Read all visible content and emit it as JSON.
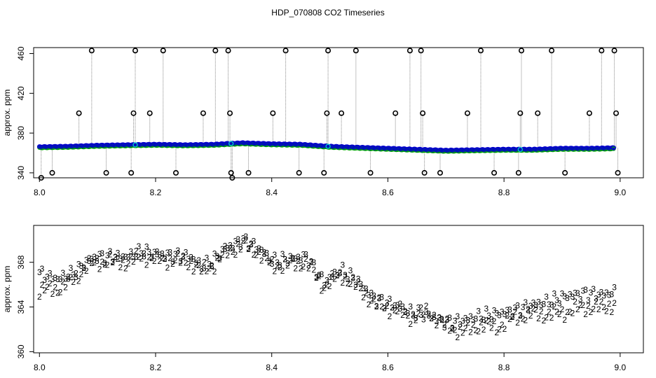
{
  "title": "HDP_070808  CO2 Timeseries",
  "chart_data": [
    {
      "type": "scatter",
      "panel": "top",
      "ylabel": "approx. ppm",
      "xlim": [
        7.99,
        9.04
      ],
      "ylim": [
        335,
        466
      ],
      "xticks": [
        8.0,
        8.2,
        8.4,
        8.6,
        8.8,
        9.0
      ],
      "xtick_labels": [
        "8.0",
        "8.2",
        "8.4",
        "8.6",
        "8.8",
        "9.0"
      ],
      "yticks": [
        340,
        380,
        420,
        460
      ],
      "ytick_labels": [
        "340",
        "380",
        "420",
        "460"
      ],
      "colors": {
        "series_blue": "#0000CC",
        "series_green": "#00AA00",
        "series_cyan": "#00CCCC",
        "outlier": "#000000",
        "connector": "#888888"
      },
      "baseline": {
        "x": [
          8.0,
          8.05,
          8.1,
          8.15,
          8.2,
          8.25,
          8.3,
          8.33,
          8.35,
          8.4,
          8.45,
          8.5,
          8.55,
          8.6,
          8.65,
          8.7,
          8.75,
          8.8,
          8.85,
          8.9,
          8.95,
          8.99
        ],
        "y": [
          366,
          366.5,
          367.5,
          368,
          368.5,
          368,
          368.5,
          369.5,
          370,
          369,
          368.5,
          366.5,
          365.5,
          364.5,
          363.5,
          362.5,
          363,
          363.5,
          363.5,
          364.5,
          364.5,
          365
        ]
      },
      "outliers": [
        {
          "x": 8.003,
          "y": 335
        },
        {
          "x": 8.022,
          "y": 340
        },
        {
          "x": 8.068,
          "y": 400
        },
        {
          "x": 8.09,
          "y": 463
        },
        {
          "x": 8.115,
          "y": 340
        },
        {
          "x": 8.158,
          "y": 340
        },
        {
          "x": 8.162,
          "y": 400
        },
        {
          "x": 8.165,
          "y": 463
        },
        {
          "x": 8.19,
          "y": 400
        },
        {
          "x": 8.213,
          "y": 463
        },
        {
          "x": 8.235,
          "y": 340
        },
        {
          "x": 8.282,
          "y": 400
        },
        {
          "x": 8.303,
          "y": 463
        },
        {
          "x": 8.325,
          "y": 463
        },
        {
          "x": 8.328,
          "y": 400
        },
        {
          "x": 8.33,
          "y": 340
        },
        {
          "x": 8.332,
          "y": 335
        },
        {
          "x": 8.36,
          "y": 340
        },
        {
          "x": 8.402,
          "y": 400
        },
        {
          "x": 8.424,
          "y": 463
        },
        {
          "x": 8.447,
          "y": 340
        },
        {
          "x": 8.495,
          "y": 400
        },
        {
          "x": 8.497,
          "y": 463
        },
        {
          "x": 8.49,
          "y": 340
        },
        {
          "x": 8.52,
          "y": 400
        },
        {
          "x": 8.545,
          "y": 463
        },
        {
          "x": 8.57,
          "y": 340
        },
        {
          "x": 8.613,
          "y": 400
        },
        {
          "x": 8.638,
          "y": 463
        },
        {
          "x": 8.657,
          "y": 463
        },
        {
          "x": 8.66,
          "y": 400
        },
        {
          "x": 8.663,
          "y": 340
        },
        {
          "x": 8.69,
          "y": 340
        },
        {
          "x": 8.737,
          "y": 400
        },
        {
          "x": 8.76,
          "y": 463
        },
        {
          "x": 8.783,
          "y": 340
        },
        {
          "x": 8.825,
          "y": 340
        },
        {
          "x": 8.828,
          "y": 400
        },
        {
          "x": 8.83,
          "y": 463
        },
        {
          "x": 8.858,
          "y": 400
        },
        {
          "x": 8.882,
          "y": 463
        },
        {
          "x": 8.905,
          "y": 340
        },
        {
          "x": 8.947,
          "y": 400
        },
        {
          "x": 8.968,
          "y": 463
        },
        {
          "x": 8.99,
          "y": 463
        },
        {
          "x": 8.993,
          "y": 400
        },
        {
          "x": 8.996,
          "y": 340
        }
      ]
    },
    {
      "type": "scatter",
      "panel": "bottom",
      "ylabel": "approx. ppm",
      "xlim": [
        7.99,
        9.04
      ],
      "ylim": [
        359.9,
        371.3
      ],
      "xticks": [
        8.0,
        8.2,
        8.4,
        8.6,
        8.8,
        9.0
      ],
      "xtick_labels": [
        "8.0",
        "8.2",
        "8.4",
        "8.6",
        "8.8",
        "9.0"
      ],
      "yticks": [
        360,
        364,
        368
      ],
      "ytick_labels": [
        "360",
        "364",
        "368"
      ],
      "marker_labels": {
        "series_3": "3",
        "series_2": "2"
      },
      "colors": {
        "series_3": "#0000CC",
        "series_2": "#00AA00"
      },
      "series_3": {
        "x": [
          8.0,
          8.03,
          8.06,
          8.08,
          8.1,
          8.12,
          8.15,
          8.18,
          8.2,
          8.23,
          8.26,
          8.28,
          8.3,
          8.32,
          8.35,
          8.38,
          8.4,
          8.43,
          8.46,
          8.49,
          8.5,
          8.52,
          8.55,
          8.58,
          8.61,
          8.64,
          8.67,
          8.7,
          8.73,
          8.76,
          8.79,
          8.82,
          8.85,
          8.88,
          8.91,
          8.94,
          8.97,
          8.99
        ],
        "y": [
          367,
          366.5,
          367,
          368,
          368.5,
          368.5,
          368.5,
          369,
          368.7,
          368.6,
          368.5,
          367.6,
          368.2,
          369.2,
          370,
          369.2,
          368.1,
          368.3,
          368.5,
          366.2,
          366.6,
          367.3,
          366.2,
          364.6,
          364.2,
          363.5,
          363.2,
          362.6,
          362.8,
          363.2,
          363.4,
          363.7,
          364.2,
          364.5,
          365,
          365.2,
          365.1,
          365.3
        ]
      },
      "series_2": {
        "x": [
          8.0,
          8.03,
          8.06,
          8.08,
          8.1,
          8.12,
          8.15,
          8.18,
          8.2,
          8.23,
          8.26,
          8.28,
          8.3,
          8.32,
          8.35,
          8.38,
          8.4,
          8.43,
          8.46,
          8.49,
          8.5,
          8.52,
          8.55,
          8.58,
          8.61,
          8.64,
          8.67,
          8.7,
          8.73,
          8.76,
          8.79,
          8.82,
          8.85,
          8.88,
          8.91,
          8.94,
          8.97,
          8.99
        ],
        "y": [
          365.5,
          365.6,
          366.5,
          367.6,
          368,
          368.1,
          368,
          368.6,
          368.2,
          368.2,
          368,
          367.2,
          367.8,
          368.8,
          369.6,
          368.8,
          367.7,
          367.8,
          368,
          365.8,
          366.2,
          366.9,
          365.7,
          364.2,
          363.8,
          363.1,
          363.6,
          362.3,
          361.8,
          362.4,
          362.2,
          363.1,
          363.4,
          363.3,
          363.6,
          364,
          363.9,
          364.3
        ]
      }
    }
  ]
}
